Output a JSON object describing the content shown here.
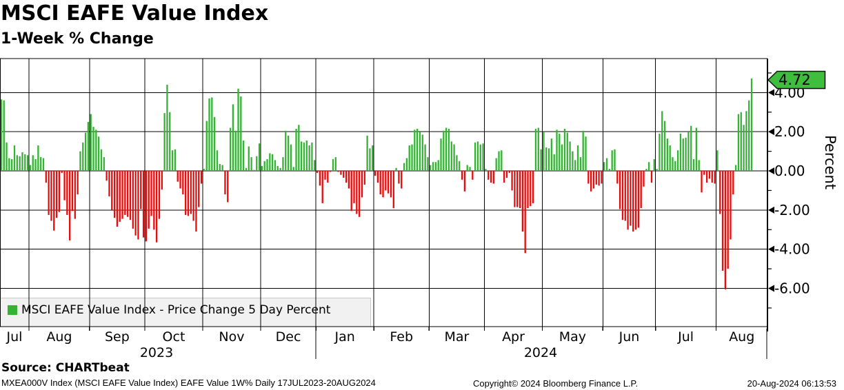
{
  "header": {
    "title": "MSCI EAFE Value Index",
    "subtitle": "1-Week % Change"
  },
  "chart_data": {
    "type": "bar",
    "title": "MSCI EAFE Value Index",
    "subtitle": "1-Week % Change",
    "ylabel": "Percent",
    "ylim": [
      -7.9,
      5.7
    ],
    "grid": true,
    "legend": "MSCI EAFE Value Index - Price Change 5 Day Percent",
    "legend_position": "bottom-left",
    "badge_label": "4.72",
    "last_value": 4.72,
    "y_major_ticks": [
      {
        "value": 4,
        "label": "4.00"
      },
      {
        "value": 2,
        "label": "2.00"
      },
      {
        "value": 0,
        "label": "0.00"
      },
      {
        "value": -2,
        "label": "-2.00"
      },
      {
        "value": -4,
        "label": "-4.00"
      },
      {
        "value": -6,
        "label": "-6.00"
      }
    ],
    "y_minor_ticks": [
      5,
      3,
      1,
      -1,
      -3,
      -5,
      -7
    ],
    "x_unit": "daily bars, trading days 17JUL2023-20AUG2024",
    "months": [
      {
        "label": "Jul",
        "year": 2023,
        "values": [
          3.65,
          3.6,
          1.45,
          0.65,
          0.6,
          1.3,
          0.8,
          0.75,
          0.95,
          0.85,
          0.8
        ]
      },
      {
        "label": "Aug",
        "year": 2023,
        "values": [
          0.3,
          0.8,
          0.6,
          1.3,
          0.7,
          0.65,
          -0.6,
          -2.25,
          -2.55,
          -3.05,
          -2.4,
          -2.1,
          -0.1,
          -1.5,
          -2.25,
          -3.55,
          -2.05,
          -2.45,
          -1.2,
          1.0,
          1.45,
          1.95,
          2.5
        ]
      },
      {
        "label": "Sep",
        "year": 2023,
        "values": [
          2.9,
          2.25,
          2.1,
          1.75,
          1.1,
          0.7,
          -0.5,
          -1.3,
          -2.0,
          -2.4,
          -2.85,
          -2.6,
          -2.45,
          -2.25,
          -2.35,
          -2.5,
          -2.95,
          -3.3,
          -3.5,
          -1.95,
          -3.4
        ]
      },
      {
        "label": "Oct",
        "year": 2023,
        "values": [
          -3.6,
          -2.95,
          -2.3,
          -3.0,
          -3.65,
          -2.45,
          -0.95,
          2.95,
          4.4,
          3.0,
          1.05,
          1.1,
          -0.55,
          -0.9,
          -1.2,
          -2.25,
          -2.3,
          -2.2,
          -2.55,
          -3.1,
          -1.85,
          -0.65
        ]
      },
      {
        "label": "Nov",
        "year": 2023,
        "values": [
          0.1,
          2.55,
          3.7,
          3.75,
          2.75,
          1.05,
          0.35,
          0.3,
          -1.2,
          -1.6,
          2.2,
          3.4,
          2.05,
          4.2,
          3.8,
          1.55,
          0.15,
          1.25,
          0.7,
          0.05,
          0.75,
          1.4
        ]
      },
      {
        "label": "Dec",
        "year": 2023,
        "values": [
          0.25,
          0.5,
          0.6,
          0.9,
          0.85,
          0.55,
          0.25,
          0.15,
          0.7,
          2.05,
          1.8,
          1.35,
          0.2,
          2.15,
          2.35,
          1.5,
          1.45,
          1.55,
          1.3,
          1.45,
          0.55
        ]
      },
      {
        "label": "Jan",
        "year": 2024,
        "values": [
          -0.1,
          -0.75,
          -1.65,
          -0.45,
          -0.6,
          -0.05,
          0.6,
          0.7,
          -0.05,
          -0.2,
          -0.35,
          -0.6,
          -0.9,
          -2.05,
          -1.65,
          -2.2,
          -2.35,
          -1.35,
          -0.7,
          1.8,
          1.15,
          1.3
        ]
      },
      {
        "label": "Feb",
        "year": 2024,
        "values": [
          -0.25,
          -0.6,
          -1.2,
          -1.35,
          -1.0,
          -1.15,
          -1.35,
          -1.9,
          0.15,
          -0.65,
          -0.9,
          0.4,
          0.65,
          1.3,
          1.35,
          2.1,
          2.15,
          2.0,
          1.85,
          1.35,
          0.7
        ]
      },
      {
        "label": "Mar",
        "year": 2024,
        "values": [
          0.3,
          0.45,
          0.45,
          0.55,
          1.65,
          2.05,
          2.2,
          2.15,
          1.5,
          1.35,
          0.8,
          0.5,
          -0.45,
          -1.05,
          0.3,
          0.2,
          -0.45,
          1.45,
          1.5,
          1.35,
          1.4
        ]
      },
      {
        "label": "Apr",
        "year": 2024,
        "values": [
          0.1,
          -0.45,
          -0.6,
          -0.65,
          0.65,
          1.0,
          1.05,
          -0.6,
          -0.35,
          -0.1,
          -1.0,
          -1.85,
          -1.85,
          -1.9,
          -3.1,
          -4.2,
          -1.9,
          -1.8,
          -1.65,
          2.15,
          2.2,
          1.1
        ]
      },
      {
        "label": "May",
        "year": 2024,
        "values": [
          2.0,
          1.2,
          1.15,
          1.65,
          0.85,
          2.1,
          1.9,
          1.35,
          2.15,
          1.95,
          1.5,
          1.0,
          0.55,
          1.3,
          0.7,
          2.05,
          1.75,
          -0.65,
          -1.05,
          -0.9,
          -0.7,
          -0.75,
          -0.65
        ]
      },
      {
        "label": "Jun",
        "year": 2024,
        "values": [
          0.45,
          0.65,
          0.1,
          1.05,
          1.1,
          -0.65,
          -1.95,
          -2.5,
          -2.55,
          -3.0,
          -2.8,
          -3.1,
          -3.0,
          -2.9,
          -1.9,
          -0.8,
          0.1,
          0.45,
          -0.6,
          0.6
        ]
      },
      {
        "label": "Jul",
        "year": 2024,
        "values": [
          0.1,
          1.9,
          3.05,
          2.55,
          1.65,
          1.3,
          0.7,
          0.5,
          1.05,
          1.9,
          1.65,
          1.7,
          2.0,
          2.3,
          0.6,
          2.2,
          0.55,
          -1.1,
          -0.2,
          -0.6,
          -0.4,
          -0.6,
          -0.65
        ]
      },
      {
        "label": "Aug",
        "year": 2024,
        "values": [
          1.05,
          -2.2,
          -5.1,
          -6.05,
          -5.0,
          -3.5,
          -1.2,
          0.3,
          2.9,
          3.0,
          2.35,
          3.05,
          3.6,
          4.72
        ]
      }
    ],
    "years": [
      {
        "label": "2023"
      },
      {
        "label": "2024"
      }
    ]
  },
  "colors": {
    "positive": "#32b432",
    "negative": "#eb0a0a",
    "badge": "#3ebe3c",
    "grid": "#000000",
    "legend_bg": "#f1f1f1"
  },
  "footer": {
    "source": "Source: CHARTbeat",
    "info": "MXEA000V Index (MSCI EAFE Value Index) EAFE Value 1W%  Daily 17JUL2023-20AUG2024",
    "copyright": "Copyright© 2024 Bloomberg Finance L.P.",
    "timestamp": "20-Aug-2024 06:13:53"
  }
}
